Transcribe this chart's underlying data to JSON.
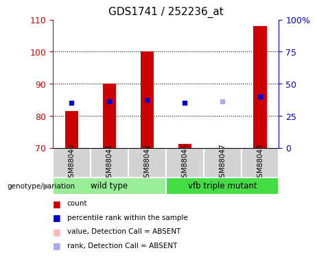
{
  "title": "GDS1741 / 252236_at",
  "categories": [
    "GSM88040",
    "GSM88041",
    "GSM88042",
    "GSM88046",
    "GSM88047",
    "GSM88048"
  ],
  "ylim": [
    70,
    110
  ],
  "yticks": [
    70,
    80,
    90,
    100,
    110
  ],
  "ytick_labels": [
    "70",
    "80",
    "90",
    "100",
    "110"
  ],
  "y2ticks": [
    0,
    25,
    50,
    75,
    100
  ],
  "y2tick_labels": [
    "0",
    "25",
    "50",
    "75",
    "100%"
  ],
  "count_values": [
    81.5,
    90,
    100,
    71.2,
    70,
    108
  ],
  "count_colors": [
    "#cc0000",
    "#cc0000",
    "#cc0000",
    "#cc0000",
    "#ffb6b6",
    "#cc0000"
  ],
  "rank_values": [
    84,
    84.5,
    85,
    84,
    84.5,
    86
  ],
  "rank_colors": [
    "#0000cc",
    "#0000cc",
    "#0000cc",
    "#0000cc",
    "#aaaaee",
    "#0000cc"
  ],
  "group1_label": "wild type",
  "group2_label": "vfb triple mutant",
  "group1_color": "#99ee99",
  "group2_color": "#44dd44",
  "label_color_count": "#cc0000",
  "label_color_rank": "#0000cc",
  "label_color_absent_val": "#ffb6b6",
  "label_color_absent_rank": "#aaaaee",
  "bar_width": 0.35,
  "axis_color_left": "#cc0000",
  "axis_color_right": "#0000cc",
  "grid_color": "black",
  "grid_yticks": [
    80,
    90,
    100
  ]
}
